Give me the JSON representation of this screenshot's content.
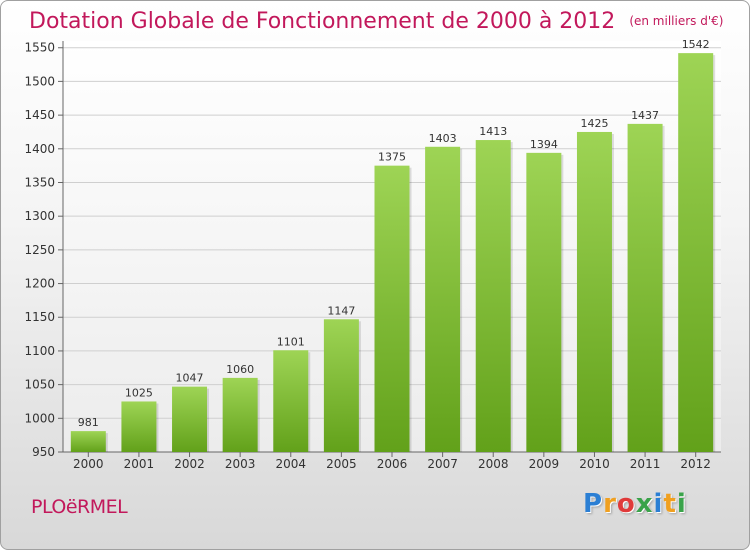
{
  "chart_data": {
    "type": "bar",
    "title": "Dotation Globale de Fonctionnement de 2000 à 2012",
    "unit_label": "(en milliers d'€)",
    "categories": [
      "2000",
      "2001",
      "2002",
      "2003",
      "2004",
      "2005",
      "2006",
      "2007",
      "2008",
      "2009",
      "2010",
      "2011",
      "2012"
    ],
    "values": [
      981,
      1025,
      1047,
      1060,
      1101,
      1147,
      1375,
      1403,
      1413,
      1394,
      1425,
      1437,
      1542
    ],
    "ylim": [
      950,
      1560
    ],
    "yticks": [
      950,
      1000,
      1050,
      1100,
      1150,
      1200,
      1250,
      1300,
      1350,
      1400,
      1450,
      1500,
      1550
    ],
    "grid": true,
    "bar_color_light": "#9ed455",
    "bar_color_dark": "#62a11a"
  },
  "footer": {
    "commune": "PLOëRMEL",
    "logo_letters": [
      "P",
      "r",
      "o",
      "x",
      "i",
      "t",
      "i"
    ],
    "logo_colors": [
      "#2b7fd4",
      "#f0a020",
      "#e03a3a",
      "#3aa34a",
      "#2b7fd4",
      "#f0a020",
      "#3aa34a"
    ]
  }
}
